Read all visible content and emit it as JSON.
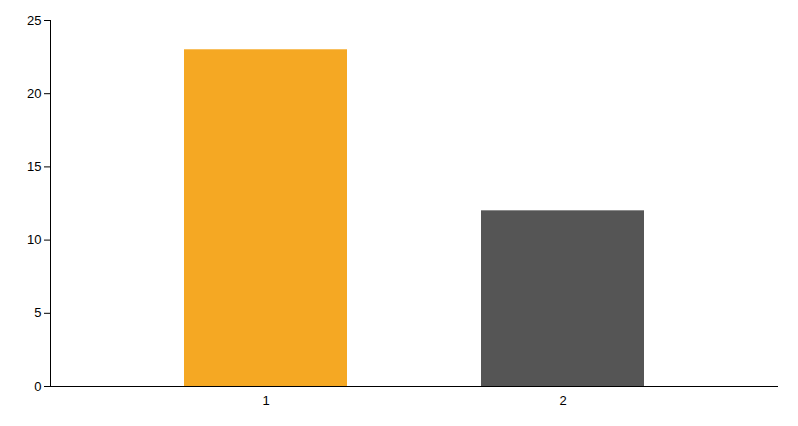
{
  "chart_data": {
    "type": "bar",
    "categories": [
      "1",
      "2"
    ],
    "values": [
      23,
      12
    ],
    "colors": [
      "#F5A823",
      "#555555"
    ],
    "ylim": [
      0,
      25
    ],
    "yticks": [
      0,
      5,
      10,
      15,
      20,
      25
    ],
    "grid": false
  }
}
